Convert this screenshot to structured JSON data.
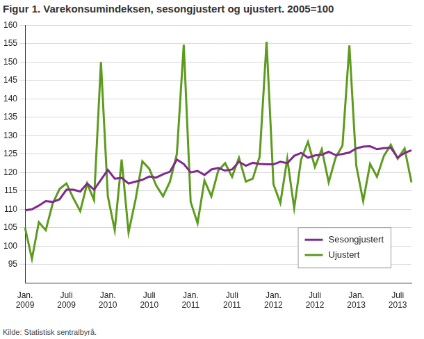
{
  "chart_data": {
    "type": "line",
    "title": "Figur 1. Varekonsumindeksen, sesongjustert og ujustert. 2005=100",
    "annotations": [
      "Kilde: Statistisk sentralbyrå."
    ],
    "categories": [
      "Jan. 2009",
      null,
      null,
      null,
      null,
      null,
      "Juli 2009",
      null,
      null,
      null,
      null,
      null,
      "Jan. 2010",
      null,
      null,
      null,
      null,
      null,
      "Juli 2010",
      null,
      null,
      null,
      null,
      null,
      "Jan. 2011",
      null,
      null,
      null,
      null,
      null,
      "Juli 2011",
      null,
      null,
      null,
      null,
      null,
      "Jan. 2012",
      null,
      null,
      null,
      null,
      null,
      "Juli 2012",
      null,
      null,
      null,
      null,
      null,
      "Jan. 2013",
      null,
      null,
      null,
      null,
      null,
      "Juli 2013",
      null,
      null
    ],
    "series": [
      {
        "name": "Sesongjustert",
        "color": "#7f2a8c",
        "values": [
          109.7,
          110.0,
          111.0,
          112.2,
          112.0,
          112.7,
          115.3,
          115.3,
          114.8,
          117.0,
          115.3,
          118.0,
          120.7,
          118.3,
          118.5,
          117.0,
          117.5,
          118.0,
          118.9,
          118.6,
          119.5,
          120.2,
          123.5,
          122.3,
          120.0,
          120.4,
          119.3,
          120.8,
          121.2,
          120.5,
          120.8,
          122.9,
          121.8,
          122.6,
          122.3,
          122.2,
          122.2,
          122.9,
          122.5,
          124.5,
          125.3,
          124.0,
          124.6,
          124.8,
          125.6,
          124.7,
          125.0,
          125.4,
          126.5,
          127.0,
          127.1,
          126.3,
          126.6,
          126.7,
          124.0,
          125.3,
          126.0
        ]
      },
      {
        "name": "Ujustert",
        "color": "#5d9b1e",
        "values": [
          105.0,
          96.5,
          106.5,
          104.3,
          111.5,
          115.5,
          117.0,
          113.0,
          109.5,
          117.0,
          112.5,
          150.0,
          113.5,
          104.3,
          123.5,
          103.7,
          112.5,
          123.0,
          121.0,
          116.5,
          113.5,
          117.5,
          125.0,
          154.7,
          112.0,
          106.2,
          117.8,
          113.5,
          120.5,
          122.5,
          118.8,
          124.0,
          117.5,
          118.3,
          124.3,
          155.5,
          116.8,
          111.7,
          123.7,
          110.3,
          123.5,
          128.3,
          121.5,
          126.3,
          117.3,
          124.0,
          127.3,
          154.5,
          121.8,
          112.2,
          122.3,
          118.8,
          124.5,
          127.5,
          123.7,
          126.5,
          117.3
        ]
      }
    ],
    "ylim": [
      90,
      160
    ],
    "yticks": [
      95,
      100,
      105,
      110,
      115,
      120,
      125,
      130,
      135,
      140,
      145,
      150,
      155,
      160
    ],
    "grid": true,
    "legend": "lower right",
    "line_style": "solid",
    "marker": "none"
  }
}
